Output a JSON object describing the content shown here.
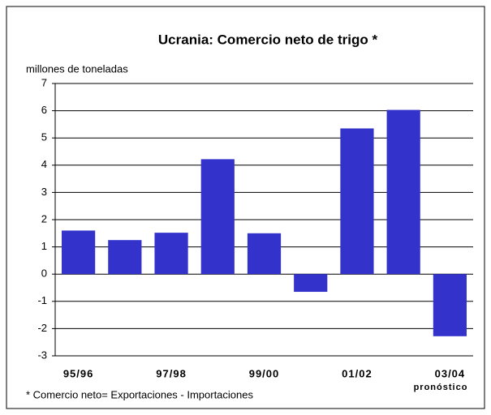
{
  "chart_data": {
    "type": "bar",
    "title": "Ucrania: Comercio neto de trigo *",
    "y_label": "millones de toneladas",
    "categories": [
      "95/96",
      null,
      "97/98",
      null,
      "99/00",
      null,
      "01/02",
      null,
      "03/04"
    ],
    "values": [
      1.6,
      1.25,
      1.52,
      4.22,
      1.5,
      -0.65,
      5.35,
      6.03,
      -2.28
    ],
    "color": "#3333cc",
    "ylim": [
      -3,
      7
    ],
    "yticks": [
      -3,
      -2,
      -1,
      0,
      1,
      2,
      3,
      4,
      5,
      6,
      7
    ],
    "grid": true,
    "annotations": [
      "pronóstico",
      "* Comercio neto= Exportaciones - Importaciones"
    ]
  }
}
